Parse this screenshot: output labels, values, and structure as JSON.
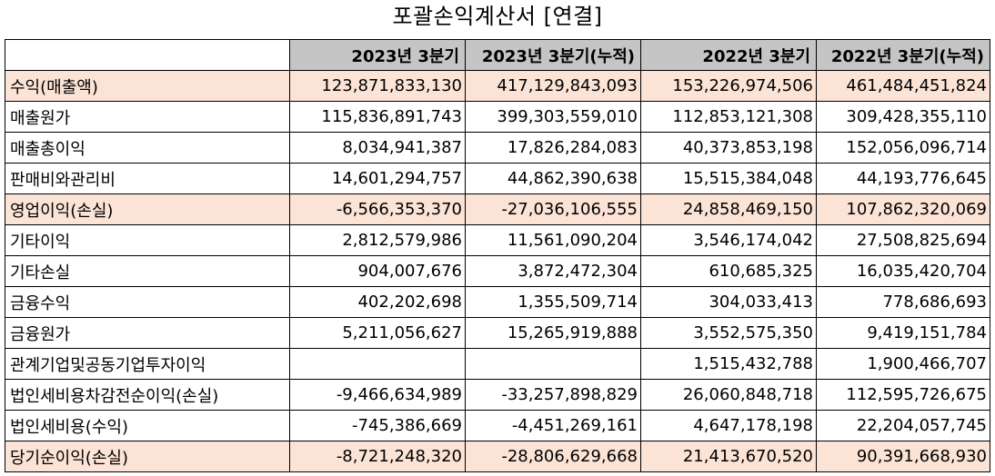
{
  "title": "포괄손익계산서 [연결]",
  "columns": [
    "",
    "2023년 3분기",
    "2023년 3분기(누적)",
    "2022년 3분기",
    "2022년 3분기(누적)"
  ],
  "rows": [
    {
      "label": "수익(매출액)",
      "values": [
        "123,871,833,130",
        "417,129,843,093",
        "153,226,974,506",
        "461,484,451,824"
      ],
      "highlight": true
    },
    {
      "label": "매출원가",
      "values": [
        "115,836,891,743",
        "399,303,559,010",
        "112,853,121,308",
        "309,428,355,110"
      ],
      "highlight": false
    },
    {
      "label": "매출총이익",
      "values": [
        "8,034,941,387",
        "17,826,284,083",
        "40,373,853,198",
        "152,056,096,714"
      ],
      "highlight": false
    },
    {
      "label": "판매비와관리비",
      "values": [
        "14,601,294,757",
        "44,862,390,638",
        "15,515,384,048",
        "44,193,776,645"
      ],
      "highlight": false
    },
    {
      "label": "영업이익(손실)",
      "values": [
        "-6,566,353,370",
        "-27,036,106,555",
        "24,858,469,150",
        "107,862,320,069"
      ],
      "highlight": true
    },
    {
      "label": "기타이익",
      "values": [
        "2,812,579,986",
        "11,561,090,204",
        "3,546,174,042",
        "27,508,825,694"
      ],
      "highlight": false
    },
    {
      "label": "기타손실",
      "values": [
        "904,007,676",
        "3,872,472,304",
        "610,685,325",
        "16,035,420,704"
      ],
      "highlight": false
    },
    {
      "label": "금융수익",
      "values": [
        "402,202,698",
        "1,355,509,714",
        "304,033,413",
        "778,686,693"
      ],
      "highlight": false
    },
    {
      "label": "금융원가",
      "values": [
        "5,211,056,627",
        "15,265,919,888",
        "3,552,575,350",
        "9,419,151,784"
      ],
      "highlight": false
    },
    {
      "label": "관계기업및공동기업투자이익",
      "values": [
        "",
        "",
        "1,515,432,788",
        "1,900,466,707"
      ],
      "highlight": false
    },
    {
      "label": "법인세비용차감전순이익(손실)",
      "values": [
        "-9,466,634,989",
        "-33,257,898,829",
        "26,060,848,718",
        "112,595,726,675"
      ],
      "highlight": false
    },
    {
      "label": "법인세비용(수익)",
      "values": [
        "-745,386,669",
        "-4,451,269,161",
        "4,647,178,198",
        "22,204,057,745"
      ],
      "highlight": false
    },
    {
      "label": "당기순이익(손실)",
      "values": [
        "-8,721,248,320",
        "-28,806,629,668",
        "21,413,670,520",
        "90,391,668,930"
      ],
      "highlight": true
    }
  ],
  "colors": {
    "header_bg": "#c5c5c5",
    "highlight_bg": "#fbe3d6",
    "border": "#000000"
  }
}
